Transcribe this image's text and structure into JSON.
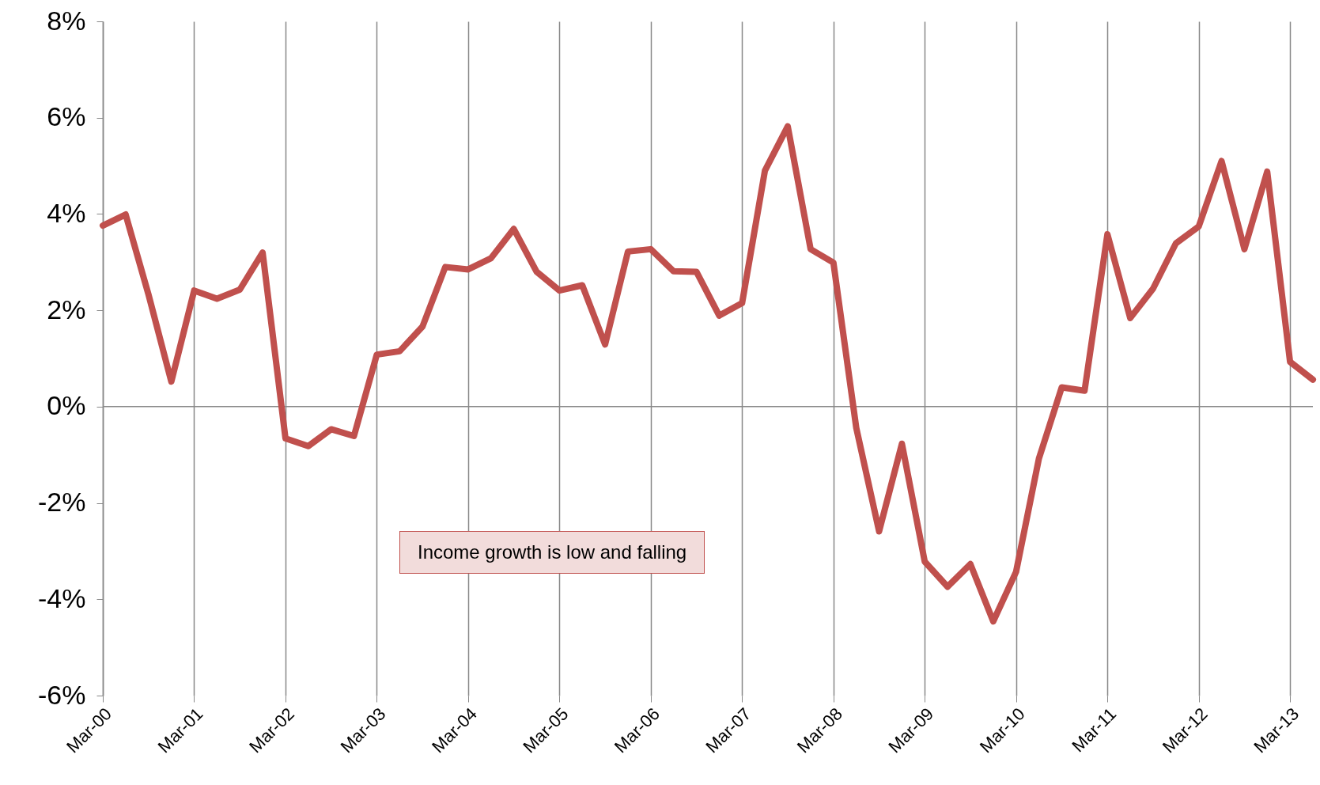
{
  "chart_data": {
    "type": "line",
    "categories": [
      "Mar-00",
      null,
      null,
      null,
      "Mar-01",
      null,
      null,
      null,
      "Mar-02",
      null,
      null,
      null,
      "Mar-03",
      null,
      null,
      null,
      "Mar-04",
      null,
      null,
      null,
      "Mar-05",
      null,
      null,
      null,
      "Mar-06",
      null,
      null,
      null,
      "Mar-07",
      null,
      null,
      null,
      "Mar-08",
      null,
      null,
      null,
      "Mar-09",
      null,
      null,
      null,
      "Mar-10",
      null,
      null,
      null,
      "Mar-11",
      null,
      null,
      null,
      "Mar-12",
      null,
      null,
      null,
      "Mar-13",
      null
    ],
    "series": [
      {
        "color": "#c0504d",
        "values": [
          3.76,
          3.99,
          2.33,
          0.52,
          2.41,
          2.24,
          2.43,
          3.2,
          -0.66,
          -0.82,
          -0.47,
          -0.61,
          1.08,
          1.15,
          1.66,
          2.9,
          2.85,
          3.08,
          3.69,
          2.8,
          2.41,
          2.52,
          1.29,
          3.22,
          3.27,
          2.81,
          2.8,
          1.89,
          2.15,
          4.9,
          5.82,
          3.27,
          2.99,
          -0.44,
          -2.59,
          -0.77,
          -3.22,
          -3.74,
          -3.27,
          -4.46,
          -3.43,
          -1.08,
          0.4,
          0.33,
          3.58,
          1.84,
          2.45,
          3.39,
          3.74,
          5.1,
          3.27,
          4.88,
          0.93,
          0.56
        ]
      }
    ],
    "ylim": [
      -6,
      8
    ],
    "yticks": [
      {
        "value": -6,
        "label": "-6%"
      },
      {
        "value": -4,
        "label": "-4%"
      },
      {
        "value": -2,
        "label": "-2%"
      },
      {
        "value": 0,
        "label": "0%"
      },
      {
        "value": 2,
        "label": "2%"
      },
      {
        "value": 4,
        "label": "4%"
      },
      {
        "value": 6,
        "label": "6%"
      },
      {
        "value": 8,
        "label": "8%"
      }
    ],
    "grid": "x",
    "ref_lines": [
      {
        "axis": "y",
        "value": 0
      }
    ],
    "annotations": [
      "Income growth is low and falling"
    ]
  }
}
